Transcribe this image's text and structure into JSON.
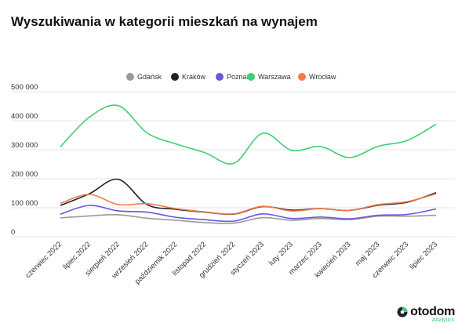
{
  "title": "Wyszukiwania w kategorii mieszkań na wynajem",
  "brand": {
    "name": "otodom",
    "sub": "Analytics",
    "logo_icon": "otodom-logo-icon"
  },
  "chart_data": {
    "type": "line",
    "title": "Wyszukiwania w kategorii mieszkań na wynajem",
    "xlabel": "",
    "ylabel": "",
    "ylim": [
      0,
      500000
    ],
    "yticks": [
      0,
      100000,
      200000,
      300000,
      400000,
      500000
    ],
    "ytick_labels": [
      "0",
      "100 000",
      "200 000",
      "300 000",
      "400 000",
      "500 000"
    ],
    "grid": true,
    "legend_position": "top",
    "categories": [
      "czerwiec 2022",
      "lipiec 2022",
      "sierpień 2022",
      "wrzesień 2022",
      "październik 2022",
      "listopad 2022",
      "grudzień 2022",
      "styczeń 2023",
      "luty 2023",
      "marzec 2023",
      "kwiecień 2023",
      "maj 2023",
      "czerwiec 2023",
      "lipiec 2023"
    ],
    "series": [
      {
        "name": "Gdańsk",
        "color": "#9a9a9a",
        "values": [
          65000,
          72000,
          76000,
          64000,
          57000,
          49000,
          47000,
          66000,
          57000,
          63000,
          59000,
          71000,
          71000,
          74000
        ]
      },
      {
        "name": "Kraków",
        "color": "#1b2233",
        "values": [
          108000,
          148000,
          198000,
          111000,
          95000,
          85000,
          78000,
          104000,
          92000,
          97000,
          91000,
          109000,
          119000,
          152000
        ]
      },
      {
        "name": "Poznań",
        "color": "#6e55e0",
        "values": [
          78000,
          108000,
          89000,
          85000,
          67000,
          59000,
          54000,
          79000,
          63000,
          68000,
          62000,
          74000,
          77000,
          96000
        ]
      },
      {
        "name": "Warszawa",
        "color": "#3fcf73",
        "values": [
          310000,
          412000,
          452000,
          358000,
          320000,
          290000,
          253000,
          357000,
          298000,
          311000,
          273000,
          312000,
          332000,
          388000
        ]
      },
      {
        "name": "Wrocław",
        "color": "#f57a45",
        "values": [
          115000,
          146000,
          111000,
          114000,
          97000,
          86000,
          79000,
          105000,
          89000,
          97000,
          91000,
          111000,
          121000,
          148000
        ]
      }
    ]
  }
}
